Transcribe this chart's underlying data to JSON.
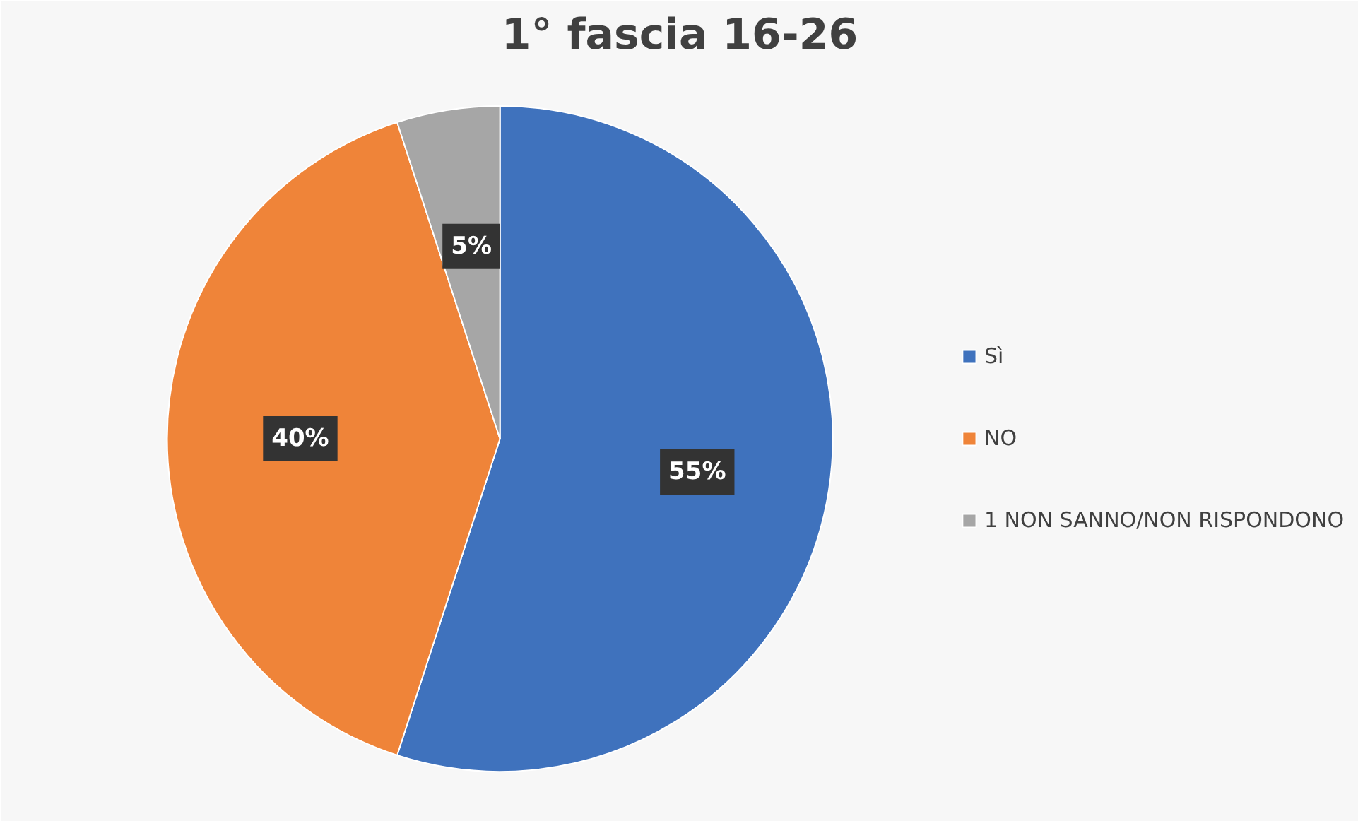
{
  "chart_data": {
    "type": "pie",
    "title": "1° fascia 16-26",
    "categories": [
      "Sì",
      "NO",
      "1 NON SANNO/NON RISPONDONO"
    ],
    "values": [
      55,
      40,
      5
    ],
    "colors": [
      "#3f72bd",
      "#ef8439",
      "#a6a6a6"
    ],
    "value_labels": [
      "55%",
      "40%",
      "5%"
    ],
    "legend": "right"
  }
}
